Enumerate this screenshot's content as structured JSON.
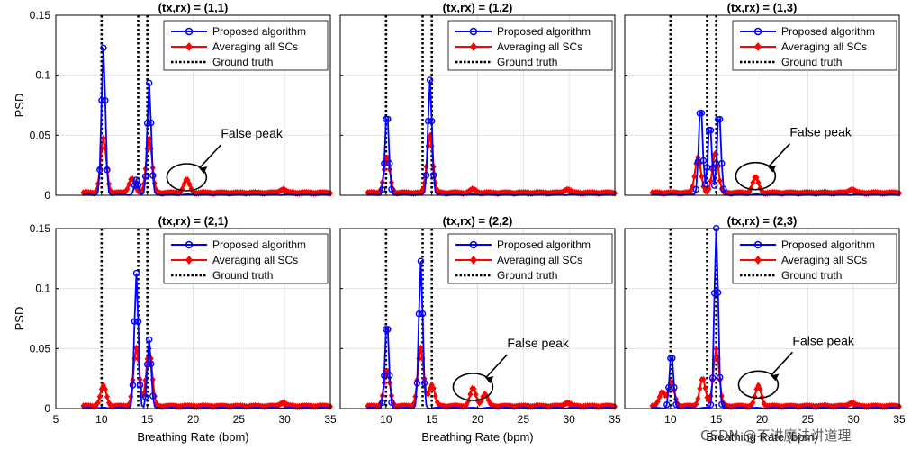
{
  "colors": {
    "proposed": "#0000ff",
    "averaging": "#ff0000",
    "ground_truth": "#000000",
    "grid": "#e2e2e2"
  },
  "watermark": "CSDN @不讲魔法讲道理",
  "chart_data": [
    {
      "type": "line",
      "title": "(tx,rx) = (1,1)",
      "xlabel": "",
      "ylabel": "PSD",
      "xlim": [
        5,
        35
      ],
      "ylim": [
        0,
        0.15
      ],
      "x_ticks": [],
      "y_ticks": [
        "0",
        "0.05",
        "0.1",
        "0.15"
      ],
      "legend": [
        "Proposed algorithm",
        "Averaging all SCs",
        "Ground truth"
      ],
      "legend_position": "top-right",
      "ground_truth": [
        10,
        14,
        15
      ],
      "proposed_peaks": [
        [
          10.2,
          0.122
        ],
        [
          15.2,
          0.093
        ],
        [
          13.8,
          0.012
        ]
      ],
      "averaging_peaks": [
        [
          10.2,
          0.045
        ],
        [
          15.2,
          0.045
        ],
        [
          13.3,
          0.012
        ],
        [
          19.3,
          0.011
        ],
        [
          29.8,
          0.003
        ]
      ],
      "annotation": {
        "text": "False peak",
        "x": 19.3,
        "y": 0.012
      }
    },
    {
      "type": "line",
      "title": "(tx,rx) = (1,2)",
      "xlabel": "",
      "ylabel": "",
      "xlim": [
        5,
        35
      ],
      "ylim": [
        0,
        0.15
      ],
      "x_ticks": [],
      "y_ticks": [],
      "legend": [
        "Proposed algorithm",
        "Averaging all SCs",
        "Ground truth"
      ],
      "legend_position": "top-right",
      "ground_truth": [
        10,
        14,
        15
      ],
      "proposed_peaks": [
        [
          10.1,
          0.07
        ],
        [
          14.8,
          0.096
        ]
      ],
      "averaging_peaks": [
        [
          10.1,
          0.03
        ],
        [
          14.8,
          0.048
        ],
        [
          19.5,
          0.003
        ],
        [
          29.8,
          0.003
        ]
      ],
      "annotation": null
    },
    {
      "type": "line",
      "title": "(tx,rx) = (1,3)",
      "xlabel": "",
      "ylabel": "",
      "xlim": [
        5,
        35
      ],
      "ylim": [
        0,
        0.15
      ],
      "x_ticks": [],
      "y_ticks": [],
      "legend": [
        "Proposed algorithm",
        "Averaging all SCs",
        "Ground truth"
      ],
      "legend_position": "top-right",
      "ground_truth": [
        10,
        14,
        15
      ],
      "proposed_peaks": [
        [
          13.3,
          0.076
        ],
        [
          14.3,
          0.06
        ],
        [
          15.3,
          0.07
        ]
      ],
      "averaging_peaks": [
        [
          13.0,
          0.03
        ],
        [
          14.9,
          0.034
        ],
        [
          19.3,
          0.013
        ],
        [
          29.8,
          0.003
        ]
      ],
      "annotation": {
        "text": "False peak",
        "x": 19.3,
        "y": 0.013
      }
    },
    {
      "type": "line",
      "title": "(tx,rx) = (2,1)",
      "xlabel": "Breathing Rate (bpm)",
      "ylabel": "PSD",
      "xlim": [
        5,
        35
      ],
      "ylim": [
        0,
        0.15
      ],
      "x_ticks": [
        "5",
        "10",
        "15",
        "20",
        "25",
        "30",
        "35"
      ],
      "y_ticks": [
        "0",
        "0.05",
        "0.1",
        "0.15"
      ],
      "legend": [
        "Proposed algorithm",
        "Averaging all SCs",
        "Ground truth"
      ],
      "legend_position": "top-right",
      "ground_truth": [
        10,
        14,
        15
      ],
      "proposed_peaks": [
        [
          13.8,
          0.112
        ],
        [
          15.2,
          0.057
        ]
      ],
      "averaging_peaks": [
        [
          10.2,
          0.017
        ],
        [
          13.8,
          0.048
        ],
        [
          15.2,
          0.048
        ],
        [
          29.8,
          0.003
        ]
      ],
      "annotation": null
    },
    {
      "type": "line",
      "title": "(tx,rx) = (2,2)",
      "xlabel": "Breathing Rate (bpm)",
      "ylabel": "",
      "xlim": [
        5,
        35
      ],
      "ylim": [
        0,
        0.15
      ],
      "x_ticks": [
        "10",
        "15",
        "20",
        "25",
        "30",
        "35"
      ],
      "y_ticks": [],
      "legend": [
        "Proposed algorithm",
        "Averaging all SCs",
        "Ground truth"
      ],
      "legend_position": "top-right",
      "ground_truth": [
        10,
        14,
        15
      ],
      "proposed_peaks": [
        [
          10.1,
          0.073
        ],
        [
          13.8,
          0.122
        ]
      ],
      "averaging_peaks": [
        [
          10.1,
          0.03
        ],
        [
          13.8,
          0.048
        ],
        [
          15.0,
          0.018
        ],
        [
          19.5,
          0.015
        ],
        [
          20.8,
          0.01
        ],
        [
          29.8,
          0.003
        ]
      ],
      "annotation": {
        "text": "False peak",
        "x": 19.5,
        "y": 0.015
      }
    },
    {
      "type": "line",
      "title": "(tx,rx) = (2,3)",
      "xlabel": "Breathing Rate (bpm)",
      "ylabel": "",
      "xlim": [
        5,
        35
      ],
      "ylim": [
        0,
        0.15
      ],
      "x_ticks": [
        "10",
        "15",
        "20",
        "25",
        "30",
        "35"
      ],
      "y_ticks": [],
      "legend": [
        "Proposed algorithm",
        "Averaging all SCs",
        "Ground truth"
      ],
      "legend_position": "top-right",
      "ground_truth": [
        10,
        14,
        15
      ],
      "proposed_peaks": [
        [
          10.1,
          0.046
        ],
        [
          15.0,
          0.15
        ]
      ],
      "averaging_peaks": [
        [
          9.1,
          0.012
        ],
        [
          10.1,
          0.02
        ],
        [
          13.5,
          0.023
        ],
        [
          15.0,
          0.048
        ],
        [
          19.6,
          0.017
        ],
        [
          29.8,
          0.003
        ]
      ],
      "annotation": {
        "text": "False peak",
        "x": 19.6,
        "y": 0.017
      }
    }
  ]
}
